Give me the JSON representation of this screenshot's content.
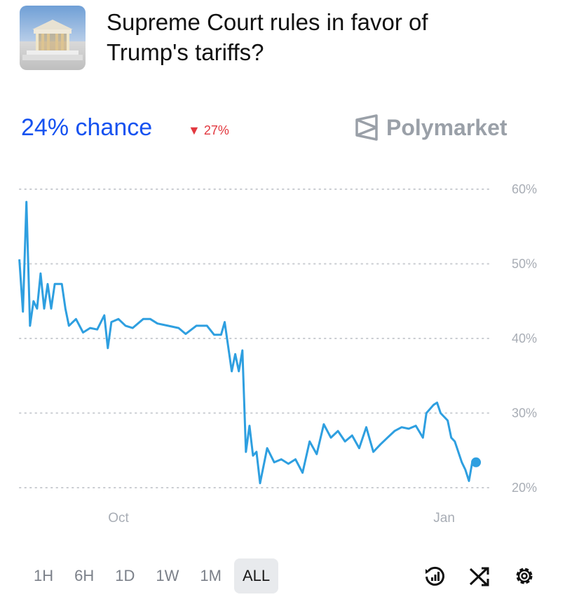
{
  "header": {
    "title_line1": "Supreme Court rules in favor of",
    "title_line2": "Trump's tariffs?",
    "thumbnail": "supreme-court-building-image"
  },
  "summary": {
    "chance": "24% chance",
    "change": "27%",
    "change_direction": "down",
    "change_color": "#e2383f"
  },
  "brand": {
    "name": "Polymarket"
  },
  "range_buttons": [
    "1H",
    "6H",
    "1D",
    "1W",
    "1M",
    "ALL"
  ],
  "active_range": "ALL",
  "toolbar_icons": [
    "history-chart-icon",
    "shuffle-icon",
    "settings-icon"
  ],
  "chart_data": {
    "type": "line",
    "color": "#2e9fe0",
    "ylim": [
      20,
      60
    ],
    "yticks": [
      60,
      50,
      40,
      30,
      20
    ],
    "ytick_labels": [
      "60%",
      "50%",
      "40%",
      "30%",
      "20%"
    ],
    "xtick_labels": [
      {
        "label": "Oct",
        "date": "2025-10-01"
      },
      {
        "label": "Jan",
        "date": "2026-01-01"
      }
    ],
    "grid": true,
    "series": [
      {
        "points": [
          [
            "2025-09-03",
            50.6
          ],
          [
            "2025-09-04",
            43.6
          ],
          [
            "2025-09-05",
            58.3
          ],
          [
            "2025-09-06",
            41.7
          ],
          [
            "2025-09-07",
            45.0
          ],
          [
            "2025-09-08",
            44.0
          ],
          [
            "2025-09-09",
            48.7
          ],
          [
            "2025-09-10",
            44.0
          ],
          [
            "2025-09-11",
            47.3
          ],
          [
            "2025-09-12",
            44.0
          ],
          [
            "2025-09-13",
            47.3
          ],
          [
            "2025-09-15",
            47.3
          ],
          [
            "2025-09-16",
            44.0
          ],
          [
            "2025-09-17",
            41.7
          ],
          [
            "2025-09-19",
            42.6
          ],
          [
            "2025-09-21",
            40.8
          ],
          [
            "2025-09-23",
            41.4
          ],
          [
            "2025-09-25",
            41.2
          ],
          [
            "2025-09-27",
            43.1
          ],
          [
            "2025-09-28",
            38.7
          ],
          [
            "2025-09-29",
            42.2
          ],
          [
            "2025-10-01",
            42.6
          ],
          [
            "2025-10-03",
            41.7
          ],
          [
            "2025-10-05",
            41.4
          ],
          [
            "2025-10-08",
            42.6
          ],
          [
            "2025-10-10",
            42.6
          ],
          [
            "2025-10-12",
            42.0
          ],
          [
            "2025-10-15",
            41.7
          ],
          [
            "2025-10-18",
            41.4
          ],
          [
            "2025-10-20",
            40.6
          ],
          [
            "2025-10-23",
            41.7
          ],
          [
            "2025-10-26",
            41.7
          ],
          [
            "2025-10-28",
            40.5
          ],
          [
            "2025-10-30",
            40.5
          ],
          [
            "2025-10-31",
            42.2
          ],
          [
            "2025-11-02",
            35.6
          ],
          [
            "2025-11-03",
            37.9
          ],
          [
            "2025-11-04",
            35.6
          ],
          [
            "2025-11-05",
            38.4
          ],
          [
            "2025-11-06",
            24.8
          ],
          [
            "2025-11-07",
            28.3
          ],
          [
            "2025-11-08",
            24.3
          ],
          [
            "2025-11-09",
            24.8
          ],
          [
            "2025-11-10",
            20.6
          ],
          [
            "2025-11-12",
            25.3
          ],
          [
            "2025-11-14",
            23.4
          ],
          [
            "2025-11-16",
            23.8
          ],
          [
            "2025-11-18",
            23.2
          ],
          [
            "2025-11-20",
            23.8
          ],
          [
            "2025-11-22",
            22.0
          ],
          [
            "2025-11-24",
            26.2
          ],
          [
            "2025-11-26",
            24.5
          ],
          [
            "2025-11-28",
            28.5
          ],
          [
            "2025-11-30",
            26.7
          ],
          [
            "2025-12-02",
            27.6
          ],
          [
            "2025-12-04",
            26.2
          ],
          [
            "2025-12-06",
            27.0
          ],
          [
            "2025-12-08",
            25.3
          ],
          [
            "2025-12-10",
            28.1
          ],
          [
            "2025-12-12",
            24.8
          ],
          [
            "2025-12-14",
            25.8
          ],
          [
            "2025-12-16",
            26.7
          ],
          [
            "2025-12-18",
            27.6
          ],
          [
            "2025-12-20",
            28.1
          ],
          [
            "2025-12-22",
            27.9
          ],
          [
            "2025-12-24",
            28.3
          ],
          [
            "2025-12-26",
            26.7
          ],
          [
            "2025-12-27",
            30.0
          ],
          [
            "2025-12-29",
            31.1
          ],
          [
            "2025-12-30",
            31.4
          ],
          [
            "2025-12-31",
            30.0
          ],
          [
            "2026-01-02",
            29.0
          ],
          [
            "2026-01-03",
            26.7
          ],
          [
            "2026-01-04",
            26.2
          ],
          [
            "2026-01-06",
            23.4
          ],
          [
            "2026-01-07",
            22.4
          ],
          [
            "2026-01-08",
            20.9
          ],
          [
            "2026-01-09",
            23.6
          ],
          [
            "2026-01-10",
            23.4
          ]
        ]
      }
    ]
  }
}
